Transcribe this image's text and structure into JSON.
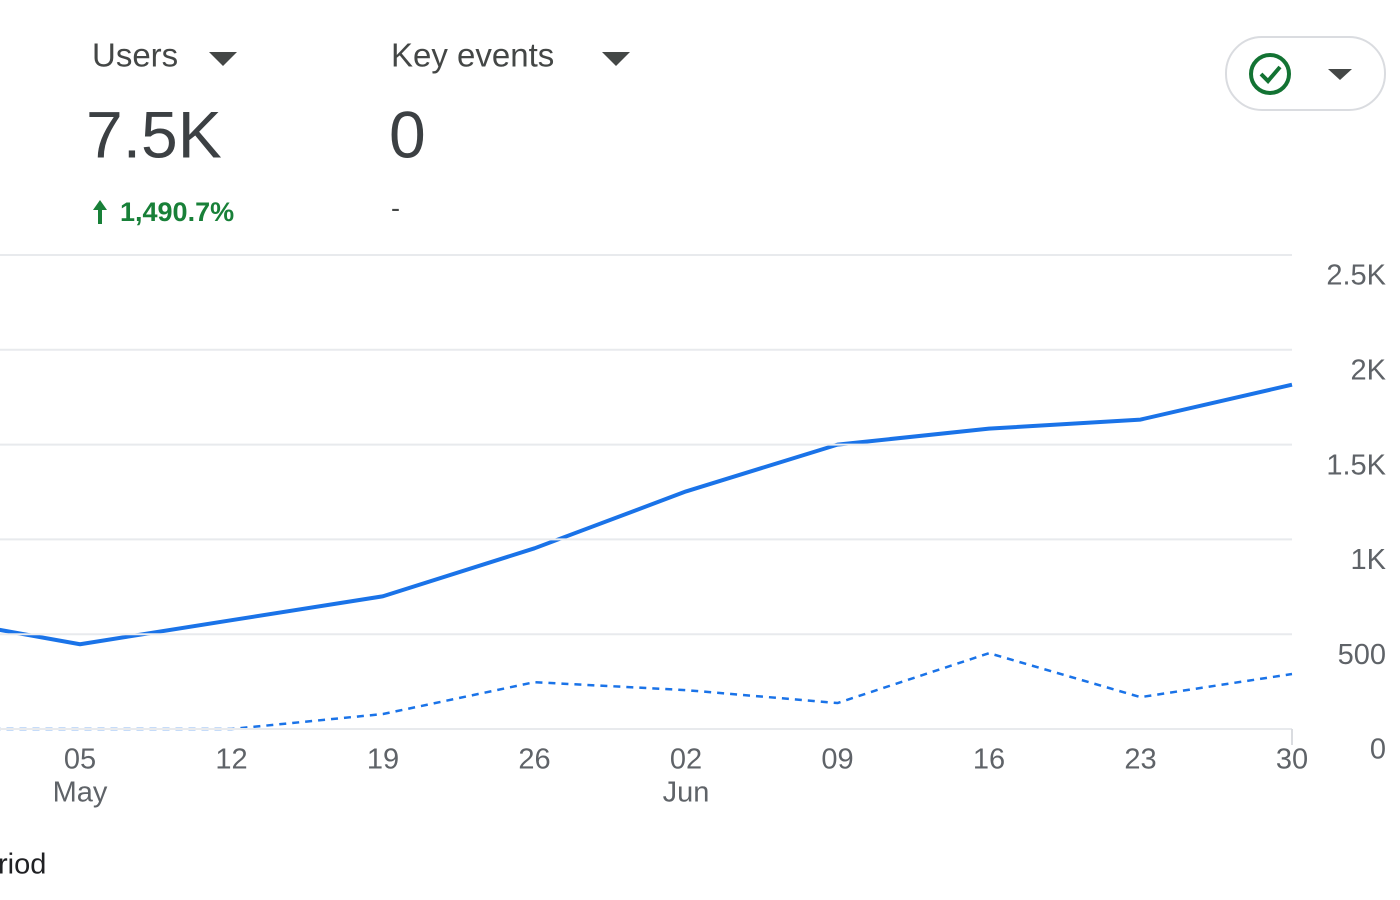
{
  "metrics": [
    {
      "label": "Users",
      "value": "7.5K",
      "change": "1,490.7%"
    },
    {
      "label": "Key events",
      "value": "0",
      "change": "-"
    }
  ],
  "footer": "riod",
  "chart_data": {
    "type": "line",
    "categories": [
      null,
      "05",
      "12",
      "19",
      "26",
      "02",
      "09",
      "16",
      "23",
      "30"
    ],
    "category_sublabels": [
      null,
      "May",
      null,
      null,
      null,
      "Jun",
      null,
      null,
      null,
      null
    ],
    "series": [
      {
        "color": "#1a73e8",
        "style": "solid",
        "values": [
          590,
          447,
          574,
          700,
          953,
          1253,
          1500,
          1584,
          1632,
          1816
        ]
      },
      {
        "color": "#1a73e8",
        "style": "dashed",
        "values": [
          0,
          0,
          0,
          79,
          247,
          205,
          137,
          400,
          168,
          290
        ]
      }
    ],
    "ylim": [
      0,
      2500
    ],
    "yticks": [
      0,
      500,
      {
        "value": 1000,
        "label": "1K"
      },
      {
        "value": 1500,
        "label": "1.5K"
      },
      {
        "value": 2000,
        "label": "2K"
      },
      {
        "value": 2500,
        "label": "2.5K"
      }
    ],
    "grid": true
  }
}
